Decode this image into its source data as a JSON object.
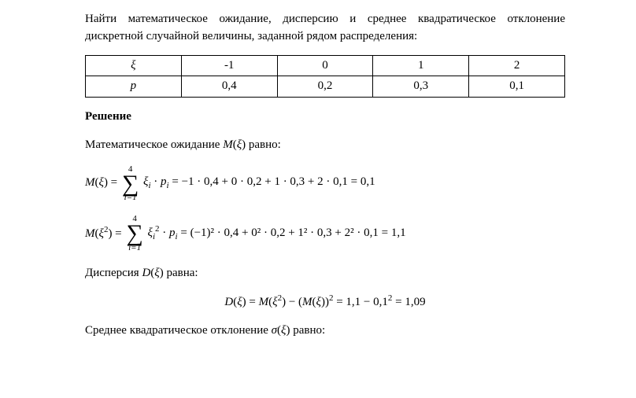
{
  "intro": "Найти математическое ожидание, дисперсию и среднее квадратическое отклонение дискретной случайной величины, заданной рядом распределения:",
  "table": {
    "row1_header": "ξ",
    "row2_header": "p",
    "columns": [
      {
        "xi": "-1",
        "p": "0,4"
      },
      {
        "xi": "0",
        "p": "0,2"
      },
      {
        "xi": "1",
        "p": "0,3"
      },
      {
        "xi": "2",
        "p": "0,1"
      }
    ]
  },
  "section_title": "Решение",
  "line_mx": "Математическое ожидание M(ξ) равно:",
  "formula1": {
    "lead": "M(ξ) = ",
    "sum_upper": "4",
    "sum_lower": "i=1",
    "sum_body": "ξ",
    "sum_body2": " · p",
    "rhs": " = −1 · 0,4 + 0 · 0,2 + 1 · 0,3 + 2 · 0,1 = 0,1"
  },
  "formula2": {
    "lead": "M(ξ²) = ",
    "sum_upper": "4",
    "sum_lower": "i=1",
    "rhs": " = (−1)² · 0,4 + 0² · 0,2 + 1² · 0,3 + 2² · 0,1 = 1,1"
  },
  "line_dx": "Дисперсия D(ξ) равна:",
  "formula3": "D(ξ) = M(ξ²) − (M(ξ))² = 1,1 − 0,1² = 1,09",
  "line_sigma": "Среднее квадратическое отклонение σ(ξ) равно:"
}
